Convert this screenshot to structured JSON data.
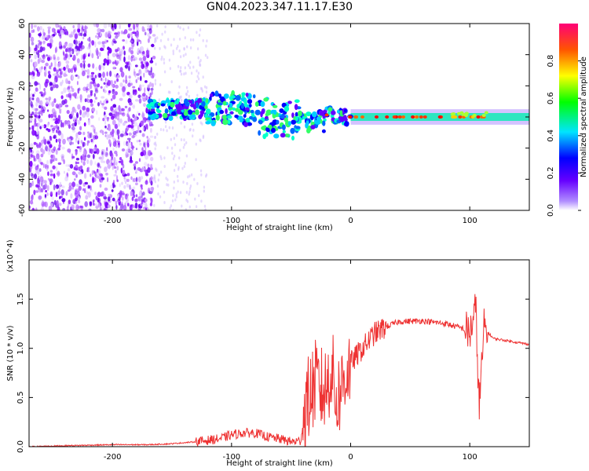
{
  "title": "GN04.2023.347.11.17.E30",
  "chart_data": [
    {
      "type": "heatmap",
      "xlabel": "Height of straight line (km)",
      "ylabel": "Frequency (Hz)",
      "xlim": [
        -270,
        150
      ],
      "ylim": [
        -60,
        60
      ],
      "xticks": [
        -200,
        -100,
        0,
        100
      ],
      "yticks": [
        -60,
        -40,
        -20,
        0,
        20,
        40,
        60
      ],
      "colorbar": {
        "label": "Normalized spectral amplitude",
        "range": [
          0.0,
          1.0
        ],
        "ticks": [
          "0.0",
          "0.2",
          "0.4",
          "0.6",
          "0.8"
        ],
        "colormap": [
          "#ffffff",
          "#7f00ff",
          "#0000ff",
          "#00ffff",
          "#00ff00",
          "#ffff00",
          "#ff0000",
          "#ff00cc"
        ]
      },
      "features": [
        {
          "name": "broadband noise",
          "x": [
            -270,
            -165
          ],
          "amplitude": 0.1
        },
        {
          "name": "diffuse scatter",
          "x": [
            -165,
            -120
          ],
          "amplitude": 0.03
        },
        {
          "name": "high-amplitude band",
          "x": [
            -170,
            150
          ],
          "center_hz": [
            5,
            5,
            6,
            2,
            2,
            0,
            0,
            0
          ],
          "center_x": [
            -170,
            -130,
            -100,
            -60,
            -30,
            0,
            60,
            150
          ],
          "amplitude": 0.9
        }
      ]
    },
    {
      "type": "line",
      "xlabel": "Height of straight line (km)",
      "ylabel": "SNR (10 * v/v)",
      "yscale_label": "(x10^4)",
      "xlim": [
        -270,
        150
      ],
      "ylim": [
        0,
        1.9
      ],
      "xticks": [
        -200,
        -100,
        0,
        100
      ],
      "yticks": [
        0.0,
        0.5,
        1.0,
        1.5
      ],
      "color": "#ee3333",
      "x": [
        -270,
        -240,
        -200,
        -170,
        -150,
        -130,
        -110,
        -100,
        -90,
        -80,
        -70,
        -60,
        -50,
        -42,
        -38,
        -30,
        -22,
        -16,
        -12,
        -8,
        -4,
        0,
        10,
        20,
        30,
        40,
        60,
        80,
        95,
        100,
        105,
        108,
        112,
        120,
        130,
        150
      ],
      "y": [
        0.0,
        0.01,
        0.02,
        0.02,
        0.03,
        0.05,
        0.08,
        0.12,
        0.14,
        0.14,
        0.1,
        0.08,
        0.05,
        0.06,
        0.4,
        0.65,
        0.55,
        0.8,
        0.45,
        0.6,
        0.75,
        0.85,
        1.0,
        1.15,
        1.22,
        1.27,
        1.28,
        1.25,
        1.2,
        1.15,
        1.4,
        0.4,
        1.2,
        1.1,
        1.08,
        1.04
      ]
    }
  ]
}
